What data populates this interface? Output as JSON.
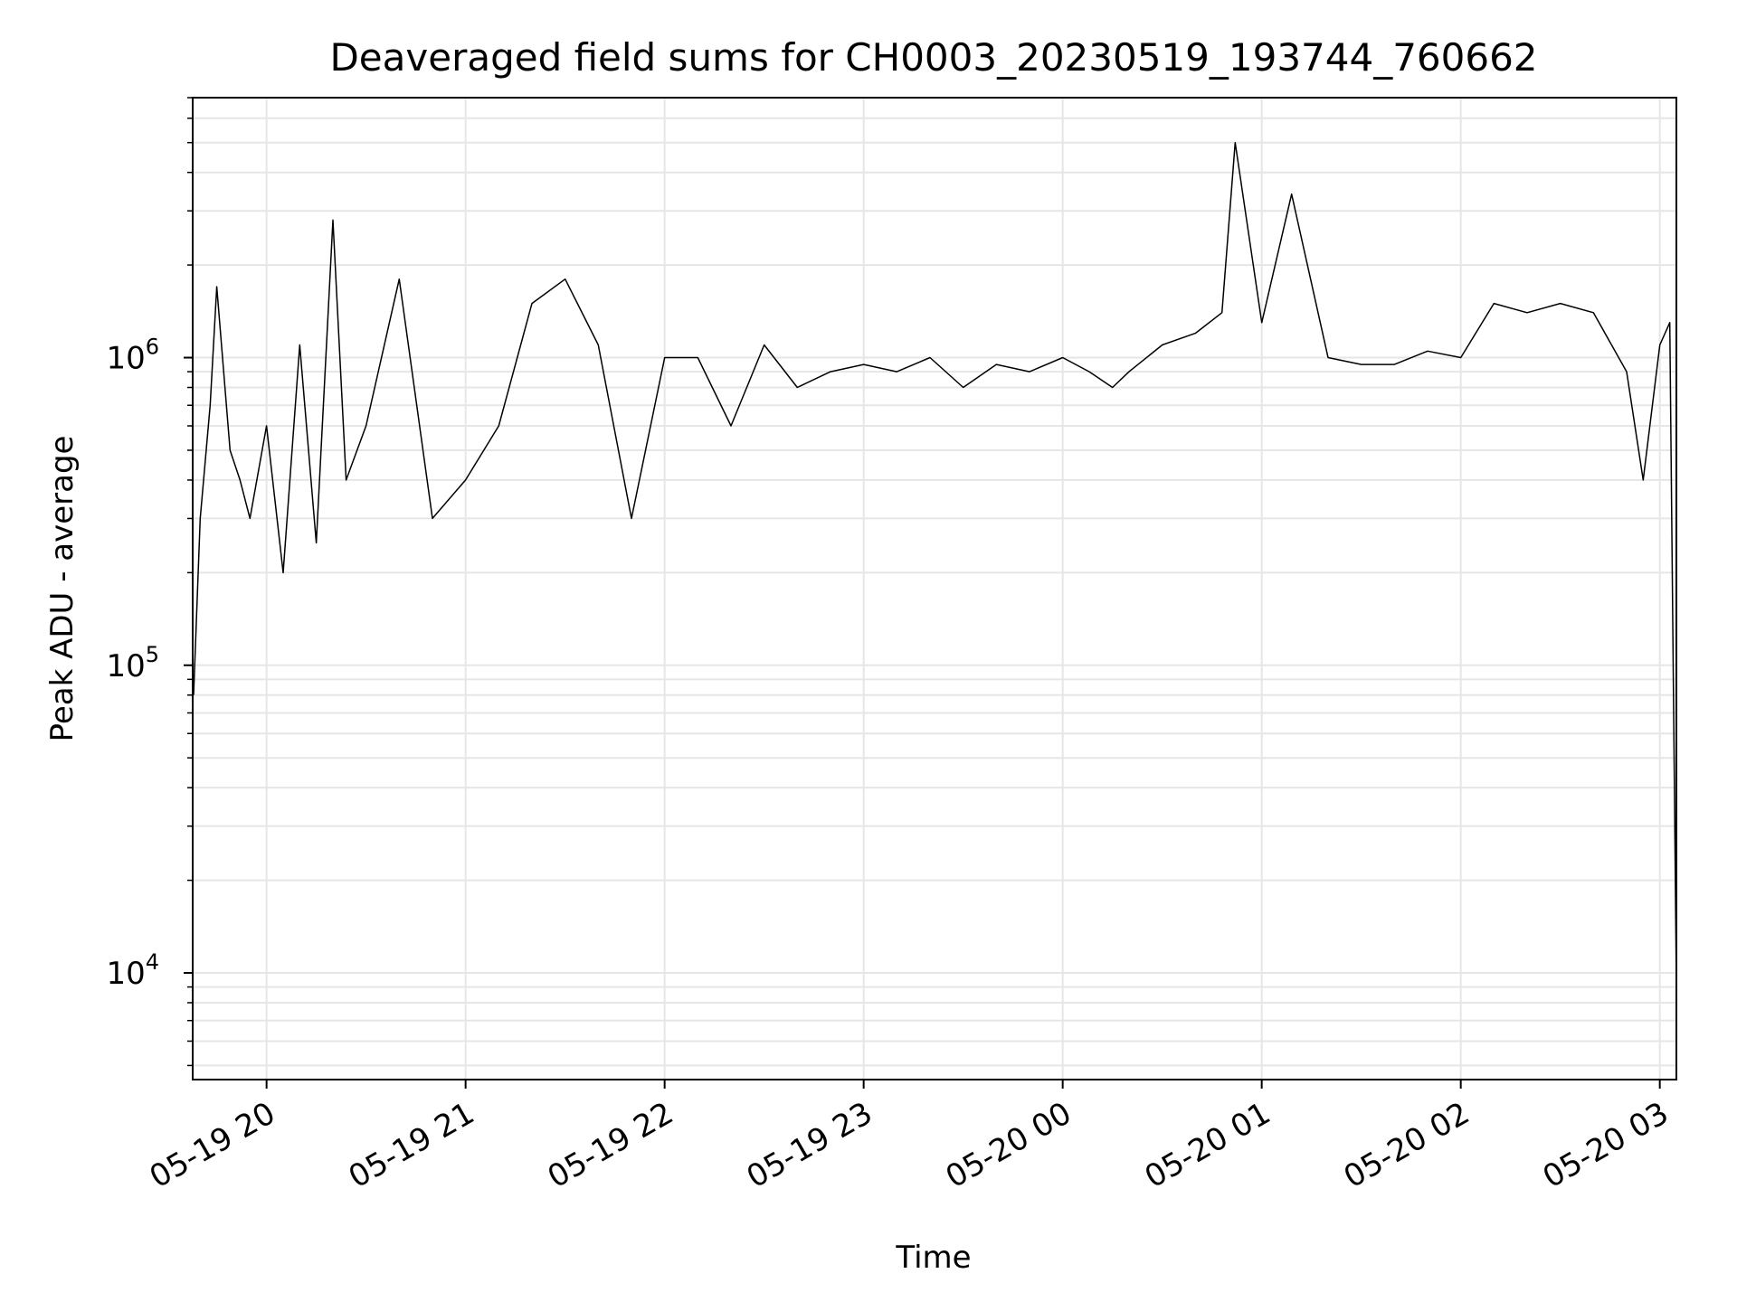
{
  "chart_data": {
    "type": "line",
    "title": "Deaveraged field sums for CH0003_20230519_193744_760662",
    "xlabel": "Time",
    "ylabel": "Peak ADU - average",
    "y_scale": "log",
    "x_range": [
      "2023-05-19T19:37:44",
      "2023-05-20T03:05:00"
    ],
    "ylim": [
      4500,
      7000000
    ],
    "x_ticks": [
      {
        "time": "2023-05-19T20:00",
        "label": "05-19 20"
      },
      {
        "time": "2023-05-19T21:00",
        "label": "05-19 21"
      },
      {
        "time": "2023-05-19T22:00",
        "label": "05-19 22"
      },
      {
        "time": "2023-05-19T23:00",
        "label": "05-19 23"
      },
      {
        "time": "2023-05-20T00:00",
        "label": "05-20 00"
      },
      {
        "time": "2023-05-20T01:00",
        "label": "05-20 01"
      },
      {
        "time": "2023-05-20T02:00",
        "label": "05-20 02"
      },
      {
        "time": "2023-05-20T03:00",
        "label": "05-20 03"
      }
    ],
    "y_ticks": [
      {
        "value": 10000,
        "base": "10",
        "exp": "4"
      },
      {
        "value": 100000,
        "base": "10",
        "exp": "5"
      },
      {
        "value": 1000000,
        "base": "10",
        "exp": "6"
      }
    ],
    "grid": true,
    "line_color": "#000000",
    "grid_color": "#e6e6e6",
    "series": [
      {
        "x": [
          "2023-05-19T19:38:00",
          "2023-05-19T19:40:00",
          "2023-05-19T19:43:00",
          "2023-05-19T19:45:00",
          "2023-05-19T19:49:00",
          "2023-05-19T19:52:00",
          "2023-05-19T19:55:00",
          "2023-05-19T20:00:00",
          "2023-05-19T20:05:00",
          "2023-05-19T20:10:00",
          "2023-05-19T20:15:00",
          "2023-05-19T20:20:00",
          "2023-05-19T20:24:00",
          "2023-05-19T20:30:00",
          "2023-05-19T20:40:00",
          "2023-05-19T20:50:00",
          "2023-05-19T21:00:00",
          "2023-05-19T21:10:00",
          "2023-05-19T21:20:00",
          "2023-05-19T21:30:00",
          "2023-05-19T21:40:00",
          "2023-05-19T21:50:00",
          "2023-05-19T22:00:00",
          "2023-05-19T22:10:00",
          "2023-05-19T22:20:00",
          "2023-05-19T22:30:00",
          "2023-05-19T22:40:00",
          "2023-05-19T22:50:00",
          "2023-05-19T23:00:00",
          "2023-05-19T23:10:00",
          "2023-05-19T23:20:00",
          "2023-05-19T23:30:00",
          "2023-05-19T23:40:00",
          "2023-05-19T23:50:00",
          "2023-05-20T00:00:00",
          "2023-05-20T00:08:00",
          "2023-05-20T00:15:00",
          "2023-05-20T00:20:00",
          "2023-05-20T00:30:00",
          "2023-05-20T00:40:00",
          "2023-05-20T00:48:00",
          "2023-05-20T00:52:00",
          "2023-05-20T01:00:00",
          "2023-05-20T01:09:00",
          "2023-05-20T01:20:00",
          "2023-05-20T01:30:00",
          "2023-05-20T01:40:00",
          "2023-05-20T01:50:00",
          "2023-05-20T02:00:00",
          "2023-05-20T02:10:00",
          "2023-05-20T02:20:00",
          "2023-05-20T02:30:00",
          "2023-05-20T02:40:00",
          "2023-05-20T02:50:00",
          "2023-05-20T02:55:00",
          "2023-05-20T03:00:00",
          "2023-05-20T03:03:00",
          "2023-05-20T03:05:00"
        ],
        "y": [
          80000,
          300000,
          700000,
          1700000,
          500000,
          400000,
          300000,
          600000,
          200000,
          1100000,
          250000,
          2800000,
          400000,
          600000,
          1800000,
          300000,
          400000,
          600000,
          1500000,
          1800000,
          1100000,
          300000,
          1000000,
          1000000,
          600000,
          1100000,
          800000,
          900000,
          950000,
          900000,
          1000000,
          800000,
          950000,
          900000,
          1000000,
          900000,
          800000,
          900000,
          1100000,
          1200000,
          1400000,
          5000000,
          1300000,
          3400000,
          1000000,
          950000,
          950000,
          1050000,
          1000000,
          1500000,
          1400000,
          1500000,
          1400000,
          900000,
          400000,
          1100000,
          1300000,
          9000
        ]
      }
    ]
  }
}
